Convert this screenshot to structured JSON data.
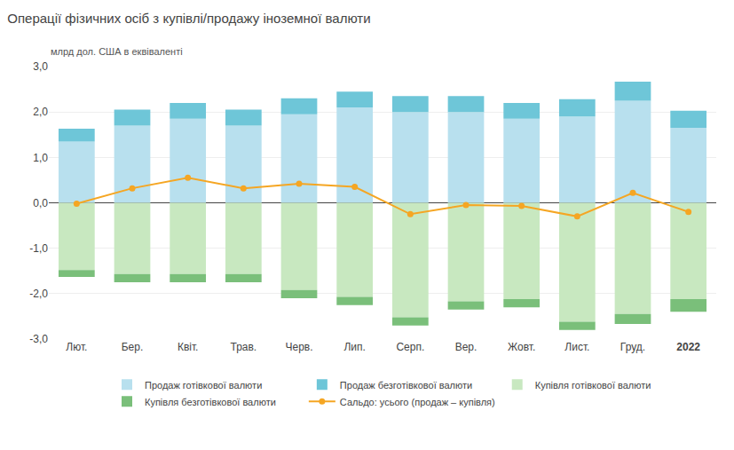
{
  "chart_data": {
    "type": "bar",
    "stacked": true,
    "title": "Операції фізичних осіб з купівлі/продажу іноземної валюти",
    "ylabel": "млрд дол. США в еквіваленті",
    "categories": [
      "Лют.",
      "Бер.",
      "Квіт.",
      "Трав.",
      "Черв.",
      "Лип.",
      "Серп.",
      "Вер.",
      "Жовт.",
      "Лист.",
      "Груд.",
      "2022"
    ],
    "ylim": [
      -3.0,
      3.0
    ],
    "yticks": [
      {
        "value": -3.0,
        "label": "-3,0"
      },
      {
        "value": -2.0,
        "label": "-2,0"
      },
      {
        "value": -1.0,
        "label": "-1,0"
      },
      {
        "value": 0.0,
        "label": "0,0"
      },
      {
        "value": 1.0,
        "label": "1,0"
      },
      {
        "value": 2.0,
        "label": "2,0"
      },
      {
        "value": 3.0,
        "label": "3,0"
      }
    ],
    "grid": true,
    "legend": "bottom",
    "series": [
      {
        "name": "Продаж готівкової валюти",
        "type": "bar",
        "color": "#b8e0ee",
        "values": [
          1.35,
          1.7,
          1.85,
          1.7,
          1.95,
          2.1,
          2.0,
          2.0,
          1.85,
          1.9,
          2.25,
          1.65
        ]
      },
      {
        "name": "Продаж безготівкової валюти",
        "type": "bar",
        "color": "#6ec6d8",
        "values": [
          0.28,
          0.35,
          0.35,
          0.35,
          0.35,
          0.35,
          0.35,
          0.35,
          0.35,
          0.38,
          0.42,
          0.38
        ]
      },
      {
        "name": "Купівля готівкової валюти",
        "type": "bar",
        "color": "#c8e8c0",
        "values": [
          -1.48,
          -1.57,
          -1.57,
          -1.57,
          -1.92,
          -2.07,
          -2.52,
          -2.17,
          -2.12,
          -2.62,
          -2.45,
          -2.12
        ]
      },
      {
        "name": "Купівля безготівкової валюти",
        "type": "bar",
        "color": "#7abf7a",
        "values": [
          -0.15,
          -0.18,
          -0.18,
          -0.18,
          -0.18,
          -0.18,
          -0.18,
          -0.18,
          -0.18,
          -0.18,
          -0.22,
          -0.28
        ]
      },
      {
        "name": "Сальдо: усього (продаж – купівля)",
        "type": "line",
        "color": "#f5a623",
        "marker": "circle",
        "values": [
          -0.02,
          0.32,
          0.55,
          0.32,
          0.42,
          0.35,
          -0.25,
          -0.05,
          -0.07,
          -0.3,
          0.22,
          -0.2
        ]
      }
    ]
  }
}
